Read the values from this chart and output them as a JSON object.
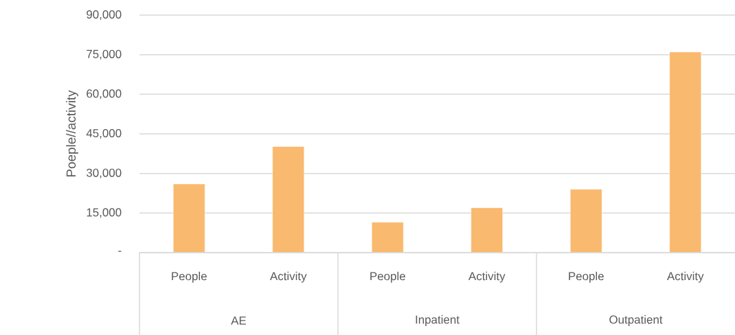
{
  "chart_data": {
    "type": "bar",
    "ylabel": "Poeple//activity",
    "categories": [
      "People",
      "Activity",
      "People",
      "Activity",
      "People",
      "Activity"
    ],
    "values": [
      26000,
      40200,
      11500,
      17000,
      24000,
      76000
    ],
    "color": "#f9b96e",
    "ylim": [
      0,
      90000
    ],
    "yticks": [
      {
        "value": 0,
        "label": "-"
      },
      {
        "value": 15000,
        "label": "15,000"
      },
      {
        "value": 30000,
        "label": "30,000"
      },
      {
        "value": 45000,
        "label": "45,000"
      },
      {
        "value": 60000,
        "label": "60,000"
      },
      {
        "value": 75000,
        "label": "75,000"
      },
      {
        "value": 90000,
        "label": "90,000"
      }
    ],
    "grid": "y",
    "annotations": [
      "AE",
      "Inpatient",
      "Outpatient"
    ]
  }
}
